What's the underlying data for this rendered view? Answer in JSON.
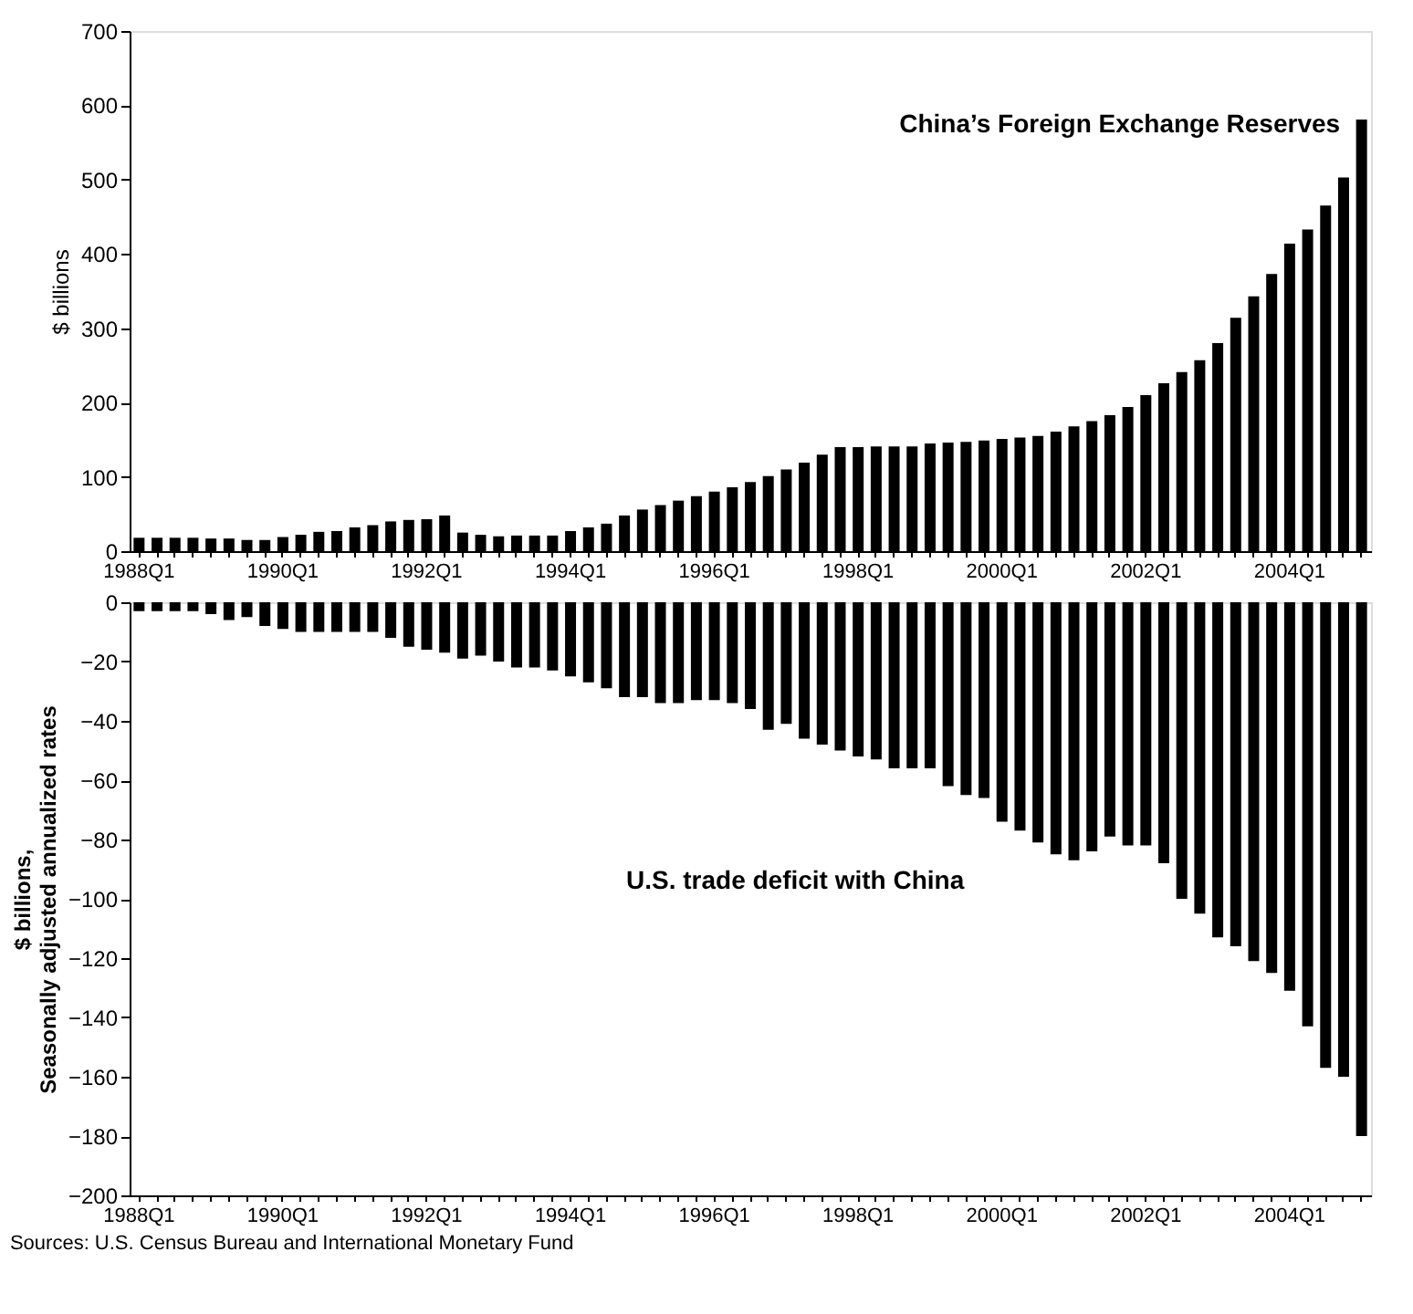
{
  "chart_data": [
    {
      "type": "bar",
      "title": "China’s Foreign Exchange Reserves",
      "ylabel": "$  billions",
      "categories": [
        "1988Q1",
        null,
        null,
        null,
        null,
        null,
        null,
        null,
        "1990Q1",
        null,
        null,
        null,
        null,
        null,
        null,
        null,
        "1992Q1",
        null,
        null,
        null,
        null,
        null,
        null,
        null,
        "1994Q1",
        null,
        null,
        null,
        null,
        null,
        null,
        null,
        "1996Q1",
        null,
        null,
        null,
        null,
        null,
        null,
        null,
        "1998Q1",
        null,
        null,
        null,
        null,
        null,
        null,
        null,
        "2000Q1",
        null,
        null,
        null,
        null,
        null,
        null,
        null,
        "2002Q1",
        null,
        null,
        null,
        null,
        null,
        null,
        null,
        "2004Q1",
        null,
        null,
        null,
        null
      ],
      "values": [
        18,
        18,
        18,
        18,
        17,
        17,
        15,
        15,
        19,
        22,
        26,
        27,
        32,
        35,
        40,
        42,
        43,
        48,
        25,
        22,
        20,
        21,
        21,
        21,
        27,
        32,
        37,
        48,
        56,
        62,
        68,
        74,
        80,
        86,
        93,
        101,
        110,
        119,
        130,
        140,
        140,
        141,
        141,
        141,
        145,
        146,
        147,
        149,
        151,
        153,
        155,
        161,
        168,
        175,
        183,
        194,
        210,
        226,
        241,
        257,
        280,
        314,
        343,
        373,
        414,
        433,
        465,
        503,
        581
      ],
      "color": "#000000",
      "ylim": [
        0,
        700
      ],
      "yticks": [
        0,
        100,
        200,
        300,
        400,
        500,
        600,
        700
      ],
      "grid": false
    },
    {
      "type": "bar",
      "title": "U.S. trade deficit with China",
      "ylabel": "$ billions,\nSeasonally adjusted annualized rates",
      "categories": [
        "1988Q1",
        null,
        null,
        null,
        null,
        null,
        null,
        null,
        "1990Q1",
        null,
        null,
        null,
        null,
        null,
        null,
        null,
        "1992Q1",
        null,
        null,
        null,
        null,
        null,
        null,
        null,
        "1994Q1",
        null,
        null,
        null,
        null,
        null,
        null,
        null,
        "1996Q1",
        null,
        null,
        null,
        null,
        null,
        null,
        null,
        "1998Q1",
        null,
        null,
        null,
        null,
        null,
        null,
        null,
        "2000Q1",
        null,
        null,
        null,
        null,
        null,
        null,
        null,
        "2002Q1",
        null,
        null,
        null,
        null,
        null,
        null,
        null,
        "2004Q1",
        null,
        null,
        null,
        null
      ],
      "values": [
        -3,
        -3,
        -3,
        -3,
        -4,
        -6,
        -5,
        -8,
        -9,
        -10,
        -10,
        -10,
        -10,
        -10,
        -12,
        -15,
        -16,
        -17,
        -19,
        -18,
        -20,
        -22,
        -22,
        -23,
        -25,
        -27,
        -29,
        -32,
        -32,
        -34,
        -34,
        -33,
        -33,
        -34,
        -36,
        -43,
        -41,
        -46,
        -48,
        -50,
        -52,
        -53,
        -56,
        -56,
        -56,
        -62,
        -65,
        -66,
        -74,
        -77,
        -81,
        -85,
        -87,
        -84,
        -79,
        -82,
        -82,
        -88,
        -100,
        -105,
        -113,
        -116,
        -121,
        -125,
        -131,
        -143,
        -157,
        -160,
        -180
      ],
      "color": "#000000",
      "ylim": [
        -200,
        0
      ],
      "yticks": [
        -200,
        -180,
        -160,
        -140,
        -120,
        -100,
        -80,
        -60,
        -40,
        -20,
        0
      ],
      "grid": false,
      "annotations": [
        "Sources:  U.S. Census Bureau and International Monetary Fund"
      ]
    }
  ]
}
